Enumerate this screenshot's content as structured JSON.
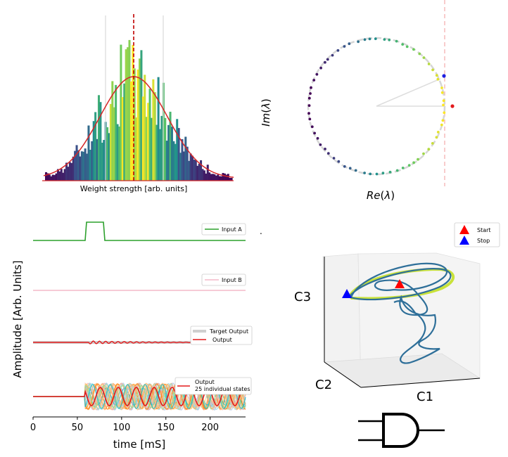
{
  "chart_data": [
    {
      "type": "bar",
      "name": "weight-histogram",
      "title": "",
      "xlabel": "Weight strength [arb. units]",
      "ylabel": "",
      "x_range": [
        -1,
        1
      ],
      "mean": 0.0,
      "std": 0.3,
      "vertical_lines": {
        "mean": 0.0,
        "minus_std": -0.3,
        "plus_std": 0.3
      },
      "fit": "gaussian",
      "colors": {
        "fit": "#d62728",
        "mean_line": "#d62728",
        "std_lines": "#d9d9d9"
      }
    },
    {
      "type": "scatter",
      "name": "eigenvalue-spectrum",
      "xlabel": "Re(λ)",
      "ylabel": "Im(λ)",
      "xlabel_base": "Re",
      "ylabel_base": "Im",
      "symbol": "λ",
      "unit_circle_radius": 1.0,
      "highlight_points": [
        {
          "label": "leading",
          "re": 1.1,
          "im": 0.0,
          "color": "#e31a1c"
        },
        {
          "label": "second",
          "re": 0.95,
          "im": 0.42,
          "color": "#1f1fe0"
        }
      ],
      "dashed_vertical_at_re": 1.0,
      "colors": {
        "circle": "#d6d6d6",
        "vertical": "#f4b6b6"
      }
    },
    {
      "type": "line",
      "name": "network-time-series",
      "xlabel": "time [mS]",
      "ylabel": "Amplitude [Arb. Units]",
      "xlim": [
        0,
        240
      ],
      "xticks": [
        "0",
        "50",
        "100",
        "150",
        "200"
      ],
      "series": [
        {
          "name": "Input A",
          "color": "#2ca02c",
          "pulse_start": 60,
          "pulse_end": 80
        },
        {
          "name": "Input B",
          "color": "#f4b8c8"
        },
        {
          "name": "Target Output",
          "color": "#cfcfcf"
        },
        {
          "name": "Output",
          "color": "#e31a1c"
        },
        {
          "name": "25 individual states",
          "color": "#ff7f0e",
          "count": 25
        }
      ],
      "legend_labels": {
        "input_a": "Input A",
        "input_b": "Input B",
        "target": "Target Output",
        "output": "Output",
        "output2": "Output",
        "states": "25 individual states"
      }
    },
    {
      "type": "line",
      "name": "pca-trajectory-3d",
      "axis_labels": {
        "x": "C1",
        "y": "C2",
        "z": "C3"
      },
      "legend": {
        "start": "Start",
        "stop": "Stop"
      },
      "colors": {
        "trajectory": "#2e6f99",
        "limit_cycle": "#c9e23a",
        "start": "#ff0000",
        "stop": "#0000ff"
      }
    }
  ],
  "logic_gate": {
    "label": "AND gate"
  }
}
